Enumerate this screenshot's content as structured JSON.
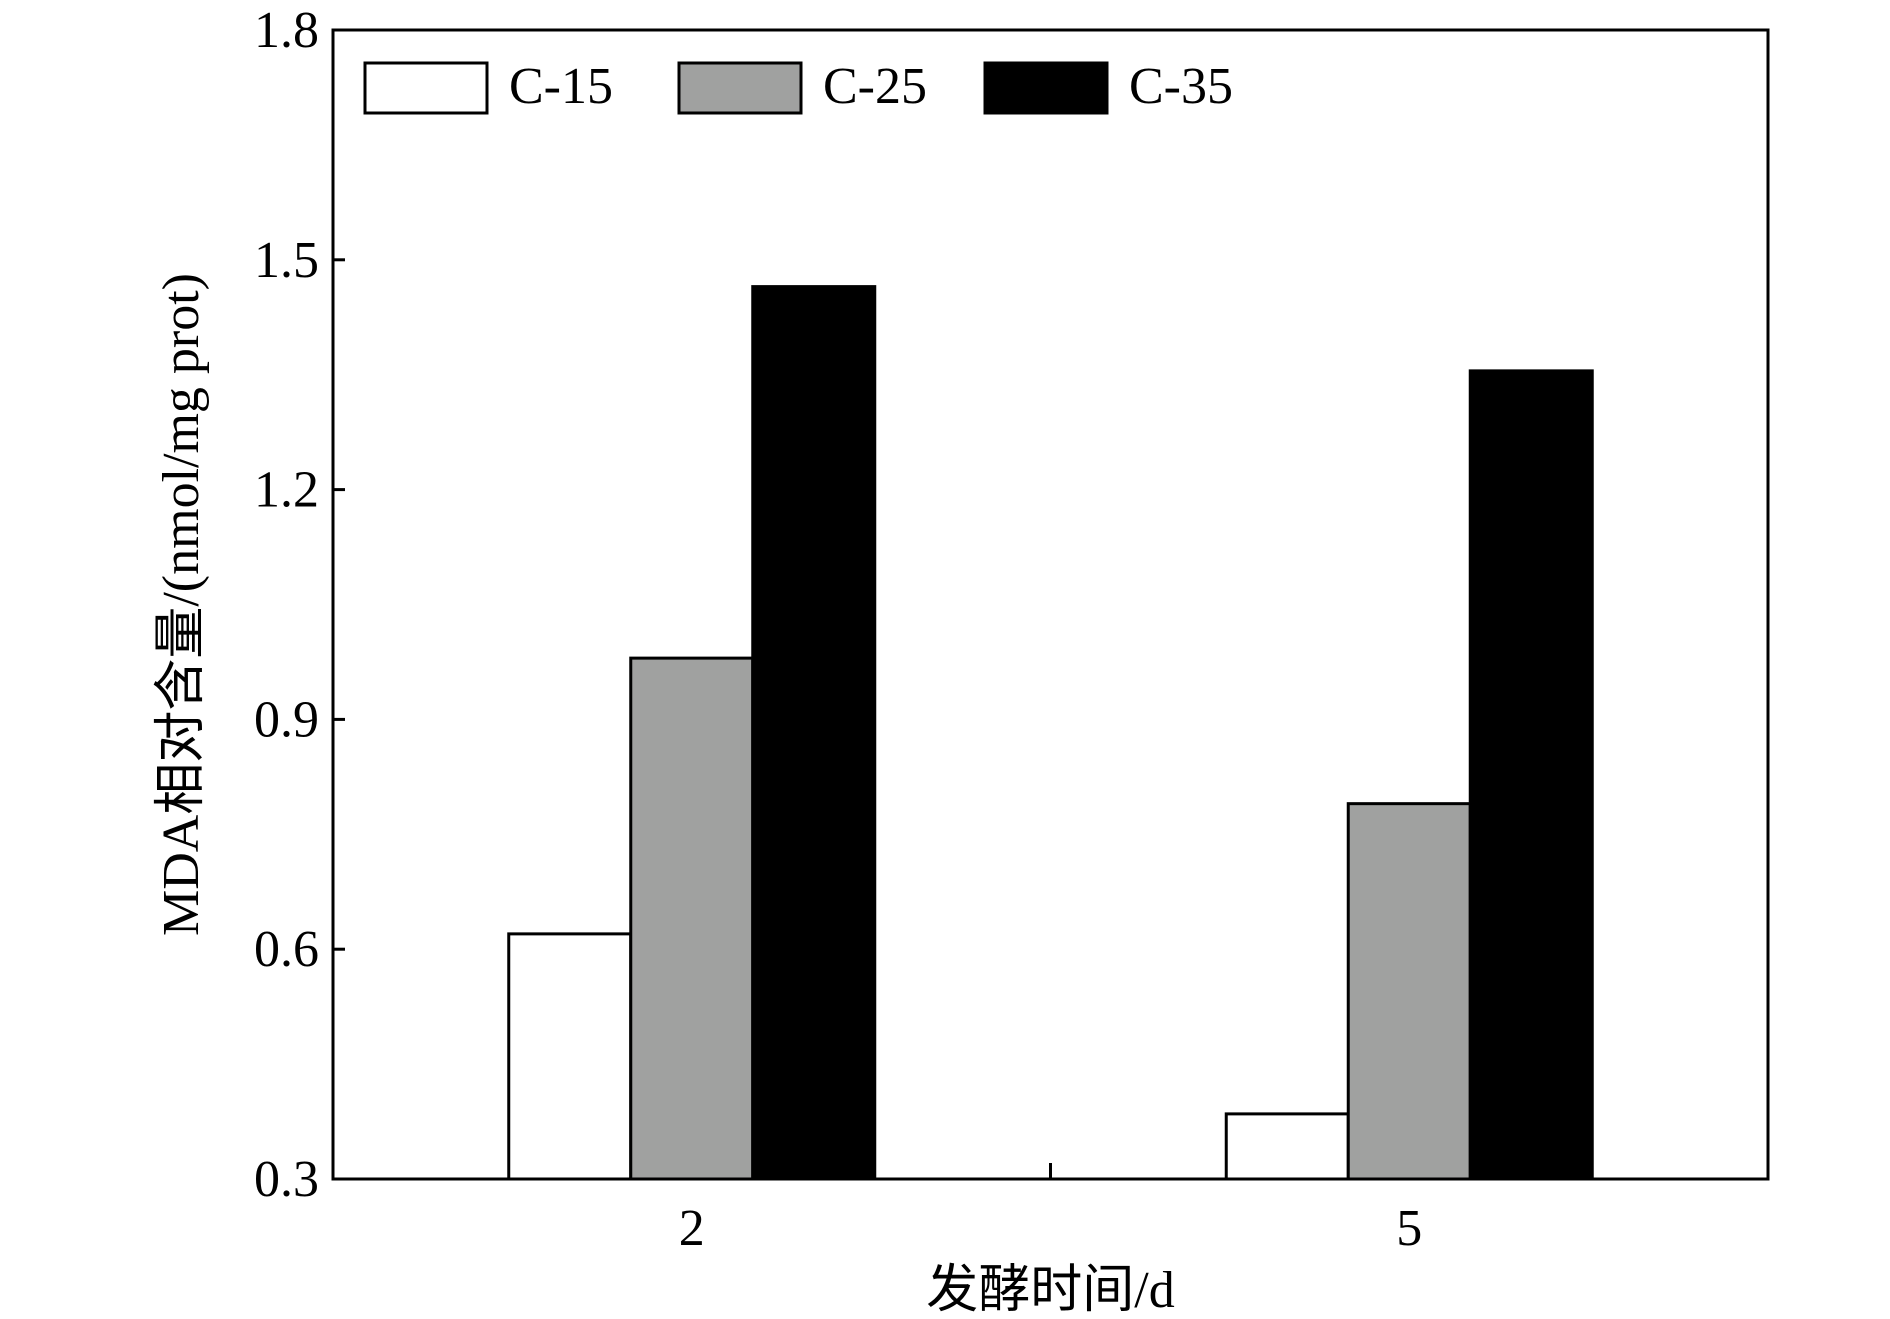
{
  "chart_data": {
    "type": "bar",
    "title": "",
    "xlabel": "发酵时间/d",
    "ylabel": "MDA相对含量/(nmol/mg prot)",
    "categories": [
      "2",
      "5"
    ],
    "series": [
      {
        "name": "C-15",
        "color": "#ffffff",
        "values": [
          0.62,
          0.385
        ]
      },
      {
        "name": "C-25",
        "color": "#a0a1a0",
        "values": [
          0.98,
          0.79
        ]
      },
      {
        "name": "C-35",
        "color": "#000000",
        "values": [
          1.465,
          1.355
        ]
      }
    ],
    "ylim": [
      0.3,
      1.8
    ],
    "yticks": [
      "0.3",
      "0.6",
      "0.9",
      "1.2",
      "1.5",
      "1.8"
    ],
    "grid": false,
    "legend_position": "top-left"
  }
}
